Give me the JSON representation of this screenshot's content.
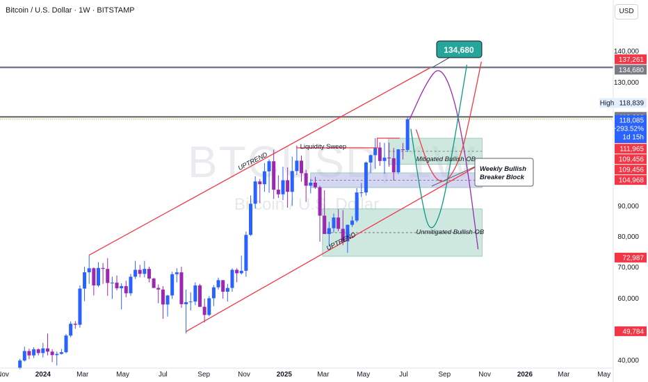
{
  "header": {
    "title": "Bitcoin / U.S. Dollar · 1W · BITSTAMP",
    "currency": "USD"
  },
  "watermark": {
    "symbol": "BTCUSD, 1W",
    "name": "Bitcoin / U.S. Dollar"
  },
  "colors": {
    "bull": "#2962ff",
    "bear": "#9c27b0",
    "red": "#f23645",
    "green_target": "#089981",
    "ob_fill": "#a5d6c4",
    "breaker_fill": "#b2b5e8",
    "level_line": "#787b86"
  },
  "chart_data": {
    "type": "candlestick",
    "ylim": [
      38000,
      142000
    ],
    "xlim": [
      "2023-11-01",
      "2026-05-15"
    ],
    "x_ticks": [
      {
        "date": "2023-11-01",
        "label": "Nov",
        "bold": false
      },
      {
        "date": "2024-01-01",
        "label": "2024",
        "bold": true
      },
      {
        "date": "2024-03-01",
        "label": "Mar",
        "bold": false
      },
      {
        "date": "2024-05-01",
        "label": "May",
        "bold": false
      },
      {
        "date": "2024-07-01",
        "label": "Jul",
        "bold": false
      },
      {
        "date": "2024-09-01",
        "label": "Sep",
        "bold": false
      },
      {
        "date": "2024-11-01",
        "label": "Nov",
        "bold": false
      },
      {
        "date": "2025-01-01",
        "label": "2025",
        "bold": true
      },
      {
        "date": "2025-03-01",
        "label": "Mar",
        "bold": false
      },
      {
        "date": "2025-05-01",
        "label": "May",
        "bold": false
      },
      {
        "date": "2025-07-01",
        "label": "Jul",
        "bold": false
      },
      {
        "date": "2025-09-01",
        "label": "Sep",
        "bold": false
      },
      {
        "date": "2025-11-01",
        "label": "Nov",
        "bold": false
      },
      {
        "date": "2026-01-01",
        "label": "2026",
        "bold": true
      },
      {
        "date": "2026-03-01",
        "label": "Mar",
        "bold": false
      },
      {
        "date": "2026-05-01",
        "label": "May",
        "bold": false
      }
    ],
    "y_ticks": [
      {
        "value": 140000,
        "label": "140,000"
      },
      {
        "value": 130000,
        "label": "130,000"
      },
      {
        "value": 90000,
        "label": "90,000"
      },
      {
        "value": 80000,
        "label": "80,000"
      },
      {
        "value": 70000,
        "label": "70,000"
      },
      {
        "value": 60000,
        "label": "60,000"
      },
      {
        "value": 40000,
        "label": "40,000"
      }
    ],
    "candles": [
      {
        "date": "2023-11-27",
        "open": 37800,
        "high": 40300,
        "low": 37500,
        "close": 39800
      },
      {
        "date": "2023-12-04",
        "open": 39800,
        "high": 44500,
        "low": 39500,
        "close": 43000
      },
      {
        "date": "2023-12-11",
        "open": 43000,
        "high": 43800,
        "low": 40200,
        "close": 41500
      },
      {
        "date": "2023-12-18",
        "open": 41500,
        "high": 44300,
        "low": 40600,
        "close": 43600
      },
      {
        "date": "2023-12-25",
        "open": 43600,
        "high": 43900,
        "low": 41500,
        "close": 42300
      },
      {
        "date": "2024-01-01",
        "open": 42300,
        "high": 45800,
        "low": 40800,
        "close": 43900
      },
      {
        "date": "2024-01-08",
        "open": 43900,
        "high": 49000,
        "low": 41500,
        "close": 42800
      },
      {
        "date": "2024-01-15",
        "open": 42800,
        "high": 43600,
        "low": 39400,
        "close": 41600
      },
      {
        "date": "2024-01-22",
        "open": 41600,
        "high": 42800,
        "low": 38500,
        "close": 42000
      },
      {
        "date": "2024-01-29",
        "open": 42000,
        "high": 43700,
        "low": 41800,
        "close": 42600
      },
      {
        "date": "2024-02-05",
        "open": 42600,
        "high": 48800,
        "low": 42200,
        "close": 48300
      },
      {
        "date": "2024-02-12",
        "open": 48300,
        "high": 52800,
        "low": 47700,
        "close": 52100
      },
      {
        "date": "2024-02-19",
        "open": 52100,
        "high": 52900,
        "low": 50600,
        "close": 51800
      },
      {
        "date": "2024-02-26",
        "open": 51800,
        "high": 64000,
        "low": 50900,
        "close": 63000
      },
      {
        "date": "2024-03-04",
        "open": 63000,
        "high": 70000,
        "low": 59000,
        "close": 68200
      },
      {
        "date": "2024-03-11",
        "open": 68200,
        "high": 73800,
        "low": 64500,
        "close": 69500
      },
      {
        "date": "2024-03-18",
        "open": 69500,
        "high": 69800,
        "low": 60800,
        "close": 64000
      },
      {
        "date": "2024-03-25",
        "open": 64000,
        "high": 71500,
        "low": 63500,
        "close": 69600
      },
      {
        "date": "2024-04-01",
        "open": 69600,
        "high": 71200,
        "low": 64500,
        "close": 69300
      },
      {
        "date": "2024-04-08",
        "open": 69300,
        "high": 72800,
        "low": 60700,
        "close": 64800
      },
      {
        "date": "2024-04-15",
        "open": 64800,
        "high": 66800,
        "low": 59700,
        "close": 64900
      },
      {
        "date": "2024-04-22",
        "open": 64900,
        "high": 67200,
        "low": 62400,
        "close": 63100
      },
      {
        "date": "2024-04-29",
        "open": 63100,
        "high": 64700,
        "low": 56500,
        "close": 63800
      },
      {
        "date": "2024-05-06",
        "open": 63800,
        "high": 65500,
        "low": 60200,
        "close": 61500
      },
      {
        "date": "2024-05-13",
        "open": 61500,
        "high": 67700,
        "low": 60700,
        "close": 66800
      },
      {
        "date": "2024-05-20",
        "open": 66800,
        "high": 71900,
        "low": 66100,
        "close": 69000
      },
      {
        "date": "2024-05-27",
        "open": 69000,
        "high": 70600,
        "low": 66600,
        "close": 67700
      },
      {
        "date": "2024-06-03",
        "open": 67700,
        "high": 71900,
        "low": 66600,
        "close": 69300
      },
      {
        "date": "2024-06-10",
        "open": 69300,
        "high": 70000,
        "low": 65000,
        "close": 66200
      },
      {
        "date": "2024-06-17",
        "open": 66200,
        "high": 66500,
        "low": 63300,
        "close": 63200
      },
      {
        "date": "2024-06-24",
        "open": 63200,
        "high": 64300,
        "low": 58400,
        "close": 62700
      },
      {
        "date": "2024-07-01",
        "open": 62700,
        "high": 63800,
        "low": 53600,
        "close": 58000
      },
      {
        "date": "2024-07-08",
        "open": 58000,
        "high": 61000,
        "low": 54300,
        "close": 60800
      },
      {
        "date": "2024-07-15",
        "open": 60800,
        "high": 68400,
        "low": 59700,
        "close": 67600
      },
      {
        "date": "2024-07-22",
        "open": 67600,
        "high": 69500,
        "low": 65000,
        "close": 68200
      },
      {
        "date": "2024-07-29",
        "open": 68200,
        "high": 70000,
        "low": 57000,
        "close": 58100
      },
      {
        "date": "2024-08-05",
        "open": 58100,
        "high": 62700,
        "low": 49000,
        "close": 58700
      },
      {
        "date": "2024-08-12",
        "open": 58700,
        "high": 61800,
        "low": 56200,
        "close": 58900
      },
      {
        "date": "2024-08-19",
        "open": 58900,
        "high": 65000,
        "low": 57800,
        "close": 64000
      },
      {
        "date": "2024-08-26",
        "open": 64000,
        "high": 64500,
        "low": 57200,
        "close": 57300
      },
      {
        "date": "2024-09-02",
        "open": 57300,
        "high": 59800,
        "low": 52500,
        "close": 54800
      },
      {
        "date": "2024-09-09",
        "open": 54800,
        "high": 60600,
        "low": 54400,
        "close": 59900
      },
      {
        "date": "2024-09-16",
        "open": 59900,
        "high": 64100,
        "low": 57500,
        "close": 63400
      },
      {
        "date": "2024-09-23",
        "open": 63400,
        "high": 66500,
        "low": 62700,
        "close": 65700
      },
      {
        "date": "2024-09-30",
        "open": 65700,
        "high": 65600,
        "low": 59800,
        "close": 62000
      },
      {
        "date": "2024-10-07",
        "open": 62000,
        "high": 64500,
        "low": 58900,
        "close": 63200
      },
      {
        "date": "2024-10-14",
        "open": 63200,
        "high": 69500,
        "low": 62000,
        "close": 69000
      },
      {
        "date": "2024-10-21",
        "open": 69000,
        "high": 69500,
        "low": 65000,
        "close": 67900
      },
      {
        "date": "2024-10-28",
        "open": 67900,
        "high": 73600,
        "low": 67500,
        "close": 68700
      },
      {
        "date": "2024-11-04",
        "open": 68700,
        "high": 81500,
        "low": 66800,
        "close": 80400
      },
      {
        "date": "2024-11-11",
        "open": 80400,
        "high": 93300,
        "low": 80100,
        "close": 90600
      },
      {
        "date": "2024-11-18",
        "open": 90600,
        "high": 99600,
        "low": 89000,
        "close": 97900
      },
      {
        "date": "2024-11-25",
        "open": 97900,
        "high": 98700,
        "low": 90800,
        "close": 97000
      },
      {
        "date": "2024-12-02",
        "open": 97000,
        "high": 103900,
        "low": 94500,
        "close": 101200
      },
      {
        "date": "2024-12-09",
        "open": 101200,
        "high": 105100,
        "low": 94200,
        "close": 104500
      },
      {
        "date": "2024-12-16",
        "open": 104500,
        "high": 108300,
        "low": 92200,
        "close": 95200
      },
      {
        "date": "2024-12-23",
        "open": 95200,
        "high": 99900,
        "low": 92500,
        "close": 93700
      },
      {
        "date": "2024-12-30",
        "open": 93700,
        "high": 102700,
        "low": 91800,
        "close": 98300
      },
      {
        "date": "2025-01-06",
        "open": 98300,
        "high": 102500,
        "low": 89300,
        "close": 94500
      },
      {
        "date": "2025-01-13",
        "open": 94500,
        "high": 106000,
        "low": 89900,
        "close": 101300
      },
      {
        "date": "2025-01-20",
        "open": 101300,
        "high": 109600,
        "low": 100000,
        "close": 104700
      },
      {
        "date": "2025-01-27",
        "open": 104700,
        "high": 106400,
        "low": 97800,
        "close": 100600
      },
      {
        "date": "2025-02-03",
        "open": 100600,
        "high": 101700,
        "low": 91200,
        "close": 96500
      },
      {
        "date": "2025-02-10",
        "open": 96500,
        "high": 98800,
        "low": 94000,
        "close": 97500
      },
      {
        "date": "2025-02-17",
        "open": 97500,
        "high": 99400,
        "low": 95500,
        "close": 96000
      },
      {
        "date": "2025-02-24",
        "open": 96000,
        "high": 96500,
        "low": 78200,
        "close": 86700
      },
      {
        "date": "2025-03-03",
        "open": 86700,
        "high": 95000,
        "low": 81500,
        "close": 80700
      },
      {
        "date": "2025-03-10",
        "open": 80700,
        "high": 84700,
        "low": 76600,
        "close": 82600
      },
      {
        "date": "2025-03-17",
        "open": 82600,
        "high": 87400,
        "low": 81200,
        "close": 86100
      },
      {
        "date": "2025-03-24",
        "open": 86100,
        "high": 88800,
        "low": 81600,
        "close": 82400
      },
      {
        "date": "2025-03-31",
        "open": 82400,
        "high": 88500,
        "low": 77100,
        "close": 78300
      },
      {
        "date": "2025-04-07",
        "open": 78300,
        "high": 83800,
        "low": 74500,
        "close": 83700
      },
      {
        "date": "2025-04-14",
        "open": 83700,
        "high": 86500,
        "low": 83000,
        "close": 85100
      },
      {
        "date": "2025-04-21",
        "open": 85100,
        "high": 95700,
        "low": 84500,
        "close": 94300
      },
      {
        "date": "2025-04-28",
        "open": 94300,
        "high": 97400,
        "low": 92800,
        "close": 94300
      },
      {
        "date": "2025-05-05",
        "open": 94300,
        "high": 104400,
        "low": 93300,
        "close": 104100
      },
      {
        "date": "2025-05-12",
        "open": 104100,
        "high": 106700,
        "low": 100700,
        "close": 106500
      },
      {
        "date": "2025-05-19",
        "open": 106500,
        "high": 112000,
        "low": 102000,
        "close": 109000
      },
      {
        "date": "2025-05-26",
        "open": 109000,
        "high": 110700,
        "low": 103000,
        "close": 104600
      },
      {
        "date": "2025-06-02",
        "open": 104600,
        "high": 110500,
        "low": 100400,
        "close": 105700
      },
      {
        "date": "2025-06-09",
        "open": 105700,
        "high": 110600,
        "low": 102700,
        "close": 105500
      },
      {
        "date": "2025-06-16",
        "open": 105500,
        "high": 108900,
        "low": 98200,
        "close": 100900
      },
      {
        "date": "2025-06-23",
        "open": 100900,
        "high": 108500,
        "low": 100300,
        "close": 108400
      },
      {
        "date": "2025-06-30",
        "open": 108400,
        "high": 110500,
        "low": 105100,
        "close": 108200
      },
      {
        "date": "2025-07-07",
        "open": 108200,
        "high": 118900,
        "low": 107500,
        "close": 118085
      }
    ],
    "price_lines": [
      {
        "value": 134680,
        "color": "#787b86",
        "style": "solid"
      },
      {
        "value": 118830,
        "color": "#787b86",
        "style": "solid"
      },
      {
        "value": 118085,
        "color": "#f0b400",
        "style": "dotted"
      }
    ],
    "channel": {
      "upper": [
        {
          "date": "2024-03-11",
          "value": 73800
        },
        {
          "date": "2025-08-10",
          "value": 134500
        }
      ],
      "lower": [
        {
          "date": "2024-08-05",
          "value": 49700
        },
        {
          "date": "2025-10-25",
          "value": 103500
        }
      ]
    },
    "zones": [
      {
        "name": "Mitigated Bullish OB",
        "from": "2025-06-08",
        "to": "2025-10-28",
        "low": 103500,
        "high": 112000,
        "fill": "#a5d6c4"
      },
      {
        "name": "Weekly Bullish Breaker Block",
        "from": "2025-02-10",
        "to": "2025-10-28",
        "low": 95900,
        "high": 100700,
        "fill": "#b2b5e8"
      },
      {
        "name": "Unmitigated Bullish OB",
        "from": "2025-02-28",
        "to": "2025-10-28",
        "low": 73400,
        "high": 88900,
        "fill": "#a5d6c4"
      }
    ],
    "projections": [
      {
        "color": "#9c27b0",
        "points": [
          [
            "2025-07-10",
            118000
          ],
          [
            "2025-08-05",
            130000
          ],
          [
            "2025-08-25",
            135300
          ],
          [
            "2025-09-15",
            126000
          ],
          [
            "2025-10-05",
            104000
          ],
          [
            "2025-10-22",
            75700
          ]
        ]
      },
      {
        "color": "#089981",
        "points": [
          [
            "2025-07-12",
            115000
          ],
          [
            "2025-07-28",
            92000
          ],
          [
            "2025-08-10",
            80500
          ],
          [
            "2025-08-28",
            88000
          ],
          [
            "2025-09-15",
            110000
          ],
          [
            "2025-10-05",
            135500
          ]
        ]
      },
      {
        "color": "#f23645",
        "points": [
          [
            "2025-07-20",
            114800
          ],
          [
            "2025-08-12",
            100000
          ],
          [
            "2025-09-02",
            96800
          ],
          [
            "2025-09-25",
            105000
          ],
          [
            "2025-10-12",
            121000
          ],
          [
            "2025-10-27",
            136500
          ]
        ]
      }
    ],
    "price_tags": [
      {
        "value": 137261,
        "label": "137,261",
        "bg": "#f23645"
      },
      {
        "value": 134680,
        "label": "134,680",
        "bg": "#787b86"
      },
      {
        "value": 118830,
        "label": "118,830",
        "bg": "#787b86"
      },
      {
        "value": 111965,
        "label": "111,965",
        "bg": "#f23645"
      },
      {
        "value": 111965,
        "label": "111,965",
        "bg": "#f23645"
      },
      {
        "value": 109456,
        "label": "109,456",
        "bg": "#f23645"
      },
      {
        "value": 109456,
        "label": "109,456",
        "bg": "#f23645"
      },
      {
        "value": 104968,
        "label": "104,968",
        "bg": "#f23645"
      },
      {
        "value": 72987,
        "label": "72,987",
        "bg": "#f23645"
      },
      {
        "value": 49784,
        "label": "49,784",
        "bg": "#f23645"
      }
    ],
    "high_label": {
      "prefix": "High",
      "value": 118839,
      "label": "118,839"
    },
    "current_price": {
      "value": 118085,
      "label": "118,085",
      "change": "+293.52%",
      "countdown": "1d 15h",
      "bg": "#2962ff"
    },
    "annotations": {
      "target_callout": "134,680",
      "uptrend_top": "UPTREND",
      "uptrend_bottom": "UPTREND",
      "liquidity_sweep": "Liquidity Sweep",
      "mitigated_ob": "Mitigated Bullish OB",
      "unmitigated_ob": "Unmitigated Bullish OB",
      "breaker_line1": "Weekly Bullish",
      "breaker_line2": "Breaker Block"
    }
  }
}
